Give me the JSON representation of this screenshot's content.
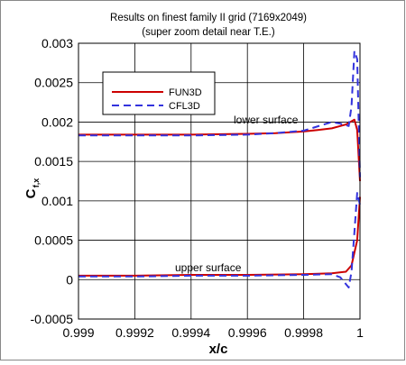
{
  "chart_data": {
    "type": "line",
    "title": "Results on finest family II grid (7169x2049)",
    "subtitle": "(super zoom detail near T.E.)",
    "xlabel": "x/c",
    "ylabel_main": "C",
    "ylabel_sub": "f,x",
    "xlim": [
      0.999,
      1.0
    ],
    "ylim": [
      -0.0005,
      0.003
    ],
    "xticks": [
      0.999,
      0.9992,
      0.9994,
      0.9996,
      0.9998,
      1.0
    ],
    "xtick_labels": [
      "0.999",
      "0.9992",
      "0.9994",
      "0.9996",
      "0.9998",
      "1"
    ],
    "yticks": [
      -0.0005,
      0,
      0.0005,
      0.001,
      0.0015,
      0.002,
      0.0025,
      0.003
    ],
    "ytick_labels": [
      "-0.0005",
      "0",
      "0.0005",
      "0.001",
      "0.0015",
      "0.002",
      "0.0025",
      "0.003"
    ],
    "grid": true,
    "legend_position": "top-left",
    "annotations": [
      {
        "text": "lower surface",
        "x": 0.99973,
        "y": 0.002
      },
      {
        "text": "upper surface",
        "x": 0.9996,
        "y": 0.0001
      }
    ],
    "series": [
      {
        "name": "FUN3D",
        "color": "#cc0000",
        "dash": "solid",
        "curves": [
          {
            "x": [
              0.999,
              0.9992,
              0.9994,
              0.9996,
              0.9997,
              0.9998,
              0.99985,
              0.9999,
              0.99995,
              0.99998,
              0.99999,
              1.0
            ],
            "y": [
              0.00184,
              0.00184,
              0.00184,
              0.00185,
              0.00186,
              0.00188,
              0.0019,
              0.00192,
              0.00197,
              0.00203,
              0.0019,
              0.00125
            ]
          },
          {
            "x": [
              0.999,
              0.9992,
              0.9994,
              0.9996,
              0.9998,
              0.9999,
              0.99995,
              0.99997,
              0.99999,
              1.0
            ],
            "y": [
              5e-05,
              5e-05,
              6e-05,
              6e-05,
              7e-05,
              8e-05,
              0.0001,
              0.00018,
              0.0005,
              0.00105
            ]
          }
        ]
      },
      {
        "name": "CFL3D",
        "color": "#3333dd",
        "dash": "dashed",
        "curves": [
          {
            "x": [
              0.999,
              0.9992,
              0.9994,
              0.9996,
              0.9997,
              0.9998,
              0.9999,
              0.99993,
              0.99996,
              0.99997,
              0.99998,
              0.99999,
              1.0
            ],
            "y": [
              0.00183,
              0.00183,
              0.00183,
              0.00184,
              0.00186,
              0.00189,
              0.002,
              0.00198,
              0.00195,
              0.0022,
              0.0029,
              0.0028,
              0.0013
            ]
          },
          {
            "x": [
              0.999,
              0.9992,
              0.9994,
              0.9996,
              0.9998,
              0.9999,
              0.99993,
              0.99996,
              0.99997,
              0.99998,
              0.99999,
              1.0
            ],
            "y": [
              4e-05,
              4e-05,
              5e-05,
              5e-05,
              6e-05,
              7e-05,
              3e-05,
              -0.0001,
              0.0001,
              0.0006,
              0.0011,
              0.00095
            ]
          }
        ]
      }
    ]
  }
}
